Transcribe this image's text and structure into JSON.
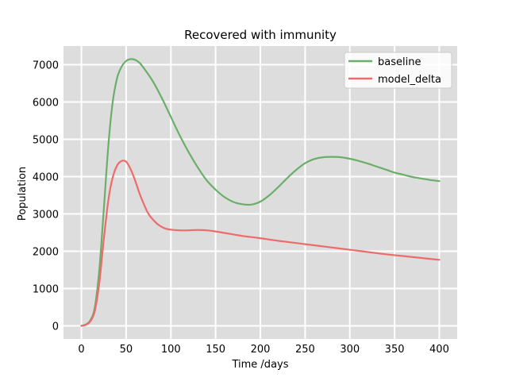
{
  "chart_data": {
    "type": "line",
    "title": "Recovered with immunity",
    "xlabel": "Time /days",
    "ylabel": "Population",
    "xlim": [
      -20,
      420
    ],
    "ylim": [
      -350,
      7500
    ],
    "xticks": [
      0,
      50,
      100,
      150,
      200,
      250,
      300,
      350,
      400
    ],
    "yticks": [
      0,
      1000,
      2000,
      3000,
      4000,
      5000,
      6000,
      7000
    ],
    "grid": true,
    "legend_position": "top-right",
    "series": [
      {
        "name": "baseline",
        "color": "#6aae6a",
        "x": [
          0,
          5,
          10,
          15,
          20,
          25,
          30,
          35,
          40,
          45,
          50,
          55,
          60,
          65,
          70,
          80,
          90,
          100,
          110,
          120,
          130,
          140,
          150,
          160,
          170,
          180,
          190,
          200,
          210,
          220,
          230,
          240,
          250,
          260,
          270,
          280,
          290,
          300,
          310,
          320,
          330,
          340,
          350,
          360,
          370,
          380,
          390,
          400
        ],
        "y": [
          0,
          40,
          150,
          500,
          1500,
          3100,
          4800,
          6000,
          6650,
          6950,
          7100,
          7150,
          7130,
          7050,
          6900,
          6550,
          6100,
          5600,
          5100,
          4650,
          4250,
          3900,
          3650,
          3450,
          3320,
          3260,
          3250,
          3330,
          3500,
          3720,
          3960,
          4180,
          4360,
          4470,
          4520,
          4530,
          4520,
          4480,
          4420,
          4350,
          4270,
          4190,
          4110,
          4050,
          3990,
          3950,
          3910,
          3880
        ]
      },
      {
        "name": "model_delta",
        "color": "#ee6b6b",
        "x": [
          0,
          5,
          10,
          15,
          20,
          25,
          30,
          35,
          40,
          45,
          50,
          55,
          60,
          65,
          70,
          75,
          80,
          85,
          90,
          95,
          100,
          110,
          120,
          130,
          140,
          150,
          160,
          170,
          180,
          190,
          200,
          220,
          240,
          260,
          280,
          300,
          320,
          340,
          360,
          380,
          400
        ],
        "y": [
          0,
          30,
          120,
          400,
          1150,
          2300,
          3350,
          3980,
          4300,
          4420,
          4400,
          4200,
          3900,
          3550,
          3250,
          3000,
          2850,
          2730,
          2650,
          2600,
          2580,
          2560,
          2560,
          2570,
          2560,
          2530,
          2490,
          2450,
          2410,
          2380,
          2350,
          2280,
          2220,
          2160,
          2100,
          2040,
          1980,
          1920,
          1870,
          1820,
          1770
        ]
      }
    ]
  }
}
